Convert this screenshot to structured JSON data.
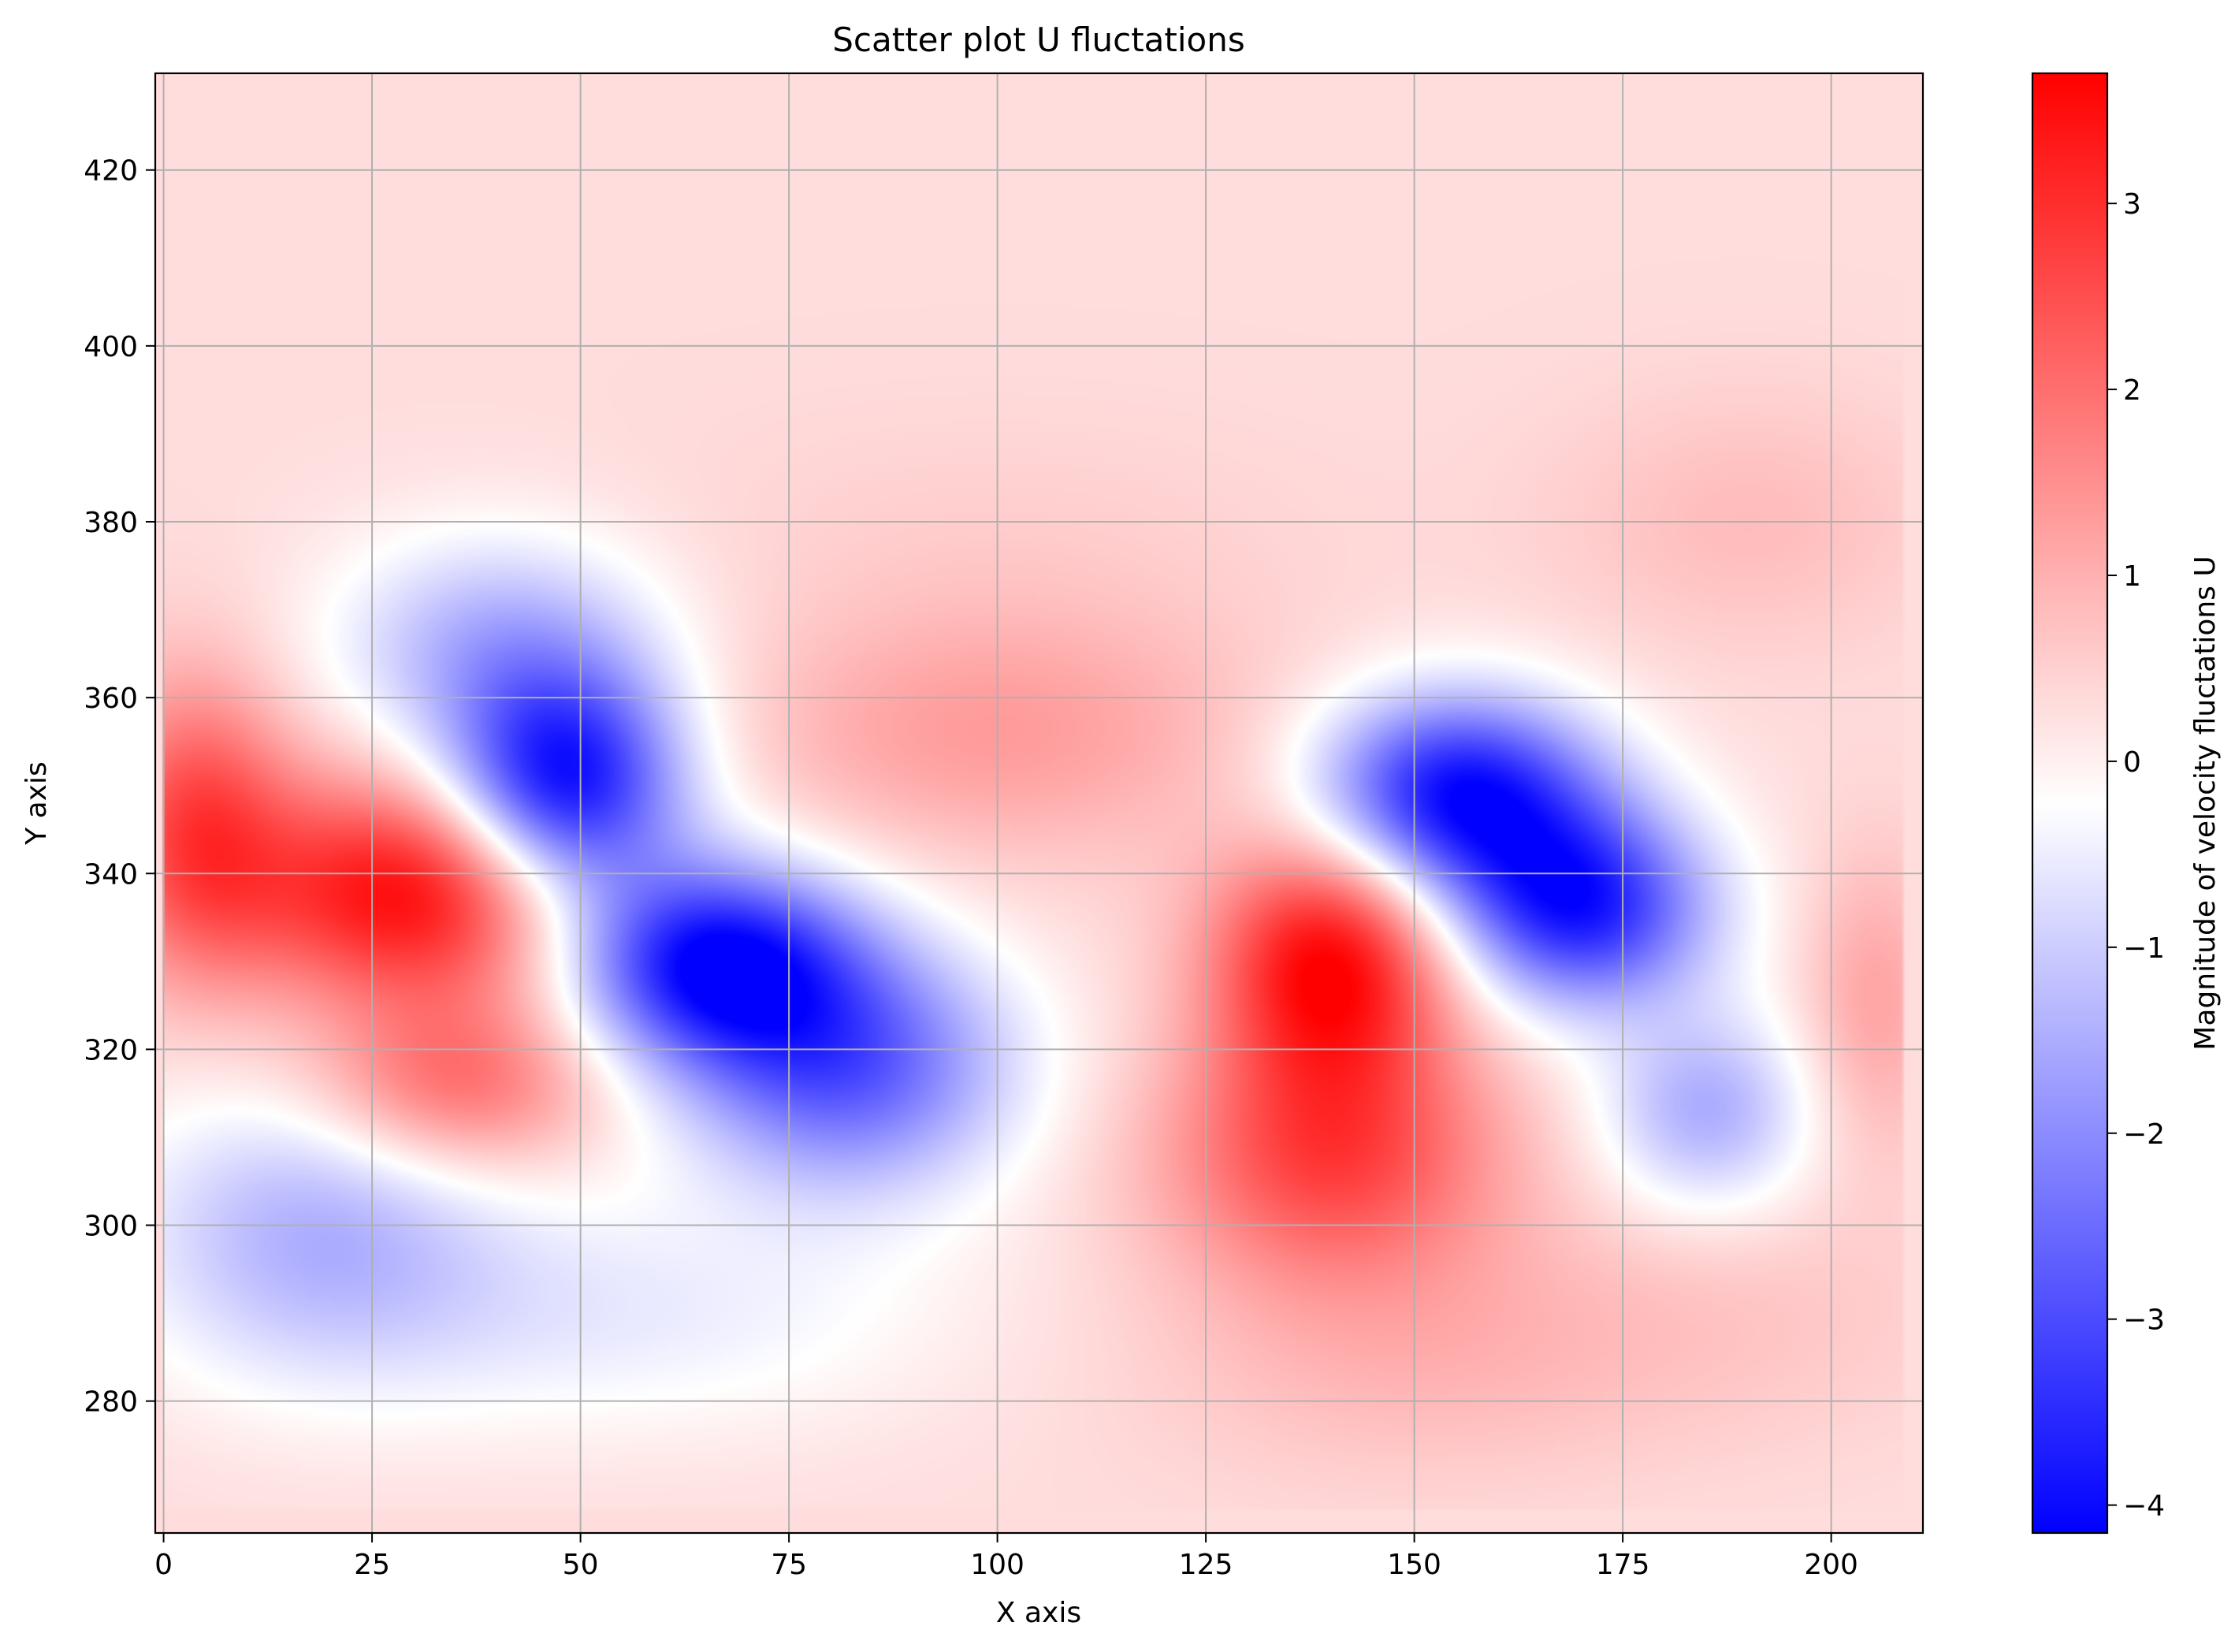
{
  "chart_data": {
    "type": "heatmap",
    "title": "Scatter plot U fluctations",
    "xlabel": "X axis",
    "ylabel": "Y axis",
    "xlim": [
      -1,
      211
    ],
    "ylim": [
      265,
      431
    ],
    "x_ticks": [
      0,
      25,
      50,
      75,
      100,
      125,
      150,
      175,
      200
    ],
    "y_ticks": [
      280,
      300,
      320,
      340,
      360,
      380,
      400,
      420
    ],
    "grid": true,
    "data_extent": {
      "x": [
        0,
        208.5
      ],
      "y": [
        267.5,
        431
      ]
    },
    "background_value": 0.3,
    "colorbar": {
      "label": "Magnitude of velocity fluctations U",
      "min": -4.15,
      "max": 3.7,
      "ticks": [
        3,
        2,
        1,
        0,
        -1,
        -2,
        -3,
        -4
      ],
      "tick_labels": [
        "3",
        "2",
        "1",
        "0",
        "−1",
        "−2",
        "−3",
        "−4"
      ],
      "colormap": "bwr",
      "colors": {
        "low": "#0000ff",
        "mid": "#ffffff",
        "high": "#ff0000"
      }
    },
    "features": [
      {
        "x": 30,
        "y": 338,
        "value": 3.7,
        "sx": 14,
        "sy": 9
      },
      {
        "x": 35,
        "y": 316,
        "value": 2.2,
        "sx": 12,
        "sy": 7
      },
      {
        "x": 4,
        "y": 345,
        "value": 2.6,
        "sx": 8,
        "sy": 12
      },
      {
        "x": 48,
        "y": 350,
        "value": -4.1,
        "sx": 10,
        "sy": 9
      },
      {
        "x": 40,
        "y": 366,
        "value": -1.4,
        "sx": 14,
        "sy": 9
      },
      {
        "x": 66,
        "y": 330,
        "value": -3.9,
        "sx": 12,
        "sy": 8
      },
      {
        "x": 82,
        "y": 318,
        "value": -2.7,
        "sx": 14,
        "sy": 10
      },
      {
        "x": 18,
        "y": 300,
        "value": -1.3,
        "sx": 16,
        "sy": 12
      },
      {
        "x": 55,
        "y": 290,
        "value": -0.5,
        "sx": 28,
        "sy": 10
      },
      {
        "x": 100,
        "y": 356,
        "value": 1.3,
        "sx": 22,
        "sy": 10
      },
      {
        "x": 100,
        "y": 378,
        "value": 0.5,
        "sx": 28,
        "sy": 10
      },
      {
        "x": 140,
        "y": 330,
        "value": 3.7,
        "sx": 10,
        "sy": 10
      },
      {
        "x": 140,
        "y": 308,
        "value": 2.6,
        "sx": 14,
        "sy": 10
      },
      {
        "x": 150,
        "y": 286,
        "value": 0.9,
        "sx": 22,
        "sy": 10
      },
      {
        "x": 155,
        "y": 349,
        "value": -4.0,
        "sx": 12,
        "sy": 8
      },
      {
        "x": 170,
        "y": 336,
        "value": -3.6,
        "sx": 11,
        "sy": 8
      },
      {
        "x": 185,
        "y": 313,
        "value": -1.5,
        "sx": 9,
        "sy": 8
      },
      {
        "x": 205,
        "y": 325,
        "value": 1.2,
        "sx": 6,
        "sy": 12
      },
      {
        "x": 190,
        "y": 380,
        "value": 0.8,
        "sx": 16,
        "sy": 10
      },
      {
        "x": 190,
        "y": 290,
        "value": 0.6,
        "sx": 20,
        "sy": 10
      }
    ]
  }
}
